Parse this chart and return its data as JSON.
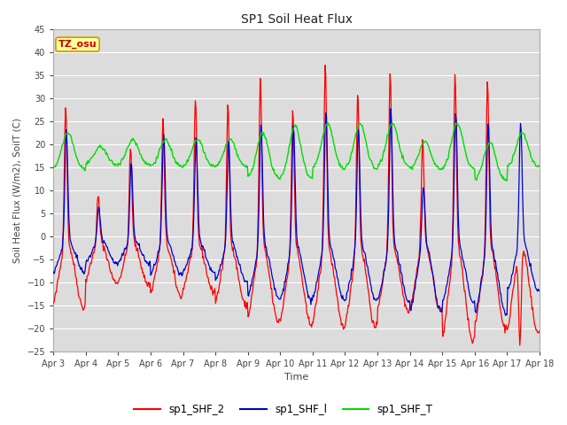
{
  "title": "SP1 Soil Heat Flux",
  "xlabel": "Time",
  "ylabel": "Soil Heat Flux (W/m2), SoilT (C)",
  "ylim": [
    -25,
    45
  ],
  "yticks": [
    -25,
    -20,
    -15,
    -10,
    -5,
    0,
    5,
    10,
    15,
    20,
    25,
    30,
    35,
    40,
    45
  ],
  "xtick_labels": [
    "Apr 3",
    "Apr 4",
    "Apr 5",
    "Apr 6",
    "Apr 7",
    "Apr 8",
    "Apr 9",
    "Apr 10",
    "Apr 11",
    "Apr 12",
    "Apr 13",
    "Apr 14",
    "Apr 15",
    "Apr 16",
    "Apr 17",
    "Apr 18"
  ],
  "color_shf2": "#ff0000",
  "color_shf1": "#0000cc",
  "color_shft": "#00dd00",
  "legend_labels": [
    "sp1_SHF_2",
    "sp1_SHF_l",
    "sp1_SHF_T"
  ],
  "annotation_text": "TZ_osu",
  "annotation_fgcolor": "#cc0000",
  "annotation_bgcolor": "#ffff99",
  "annotation_edgecolor": "#cc9900",
  "bg_color": "#dcdcdc",
  "grid_color": "#ffffff",
  "shf2_peaks": [
    30.5,
    10.0,
    20.5,
    27.0,
    31.0,
    30.5,
    36.5,
    30.0,
    40.0,
    33.5,
    38.0,
    23.0,
    38.0,
    36.5,
    -21
  ],
  "shf2_troughs": [
    -15.5,
    -10.0,
    -10.5,
    -13.0,
    -12.0,
    -15.0,
    -18.5,
    -19.0,
    -19.5,
    -20.0,
    -16.0,
    -16.0,
    -23.0,
    -20.0,
    -21.0
  ],
  "shf1_peaks": [
    24.0,
    7.0,
    16.5,
    23.0,
    22.0,
    22.0,
    26.0,
    26.0,
    29.0,
    25.0,
    29.0,
    13.0,
    29.0,
    27.0,
    26.0
  ],
  "shf1_troughs": [
    -8.0,
    -6.0,
    -6.0,
    -8.5,
    -8.0,
    -10.0,
    -13.5,
    -14.0,
    -13.5,
    -14.0,
    -14.0,
    -16.5,
    -14.5,
    -17.0,
    -12.0
  ],
  "shft_base": [
    14.5,
    15.5,
    15.5,
    15.0,
    15.0,
    15.0,
    12.5,
    12.5,
    14.5,
    14.5,
    15.0,
    14.5,
    14.5,
    12.0,
    15.0
  ],
  "shft_peaks": [
    22.5,
    19.5,
    21.0,
    21.0,
    21.0,
    21.0,
    22.5,
    24.0,
    24.5,
    24.5,
    24.5,
    20.5,
    24.5,
    20.5,
    22.5
  ]
}
